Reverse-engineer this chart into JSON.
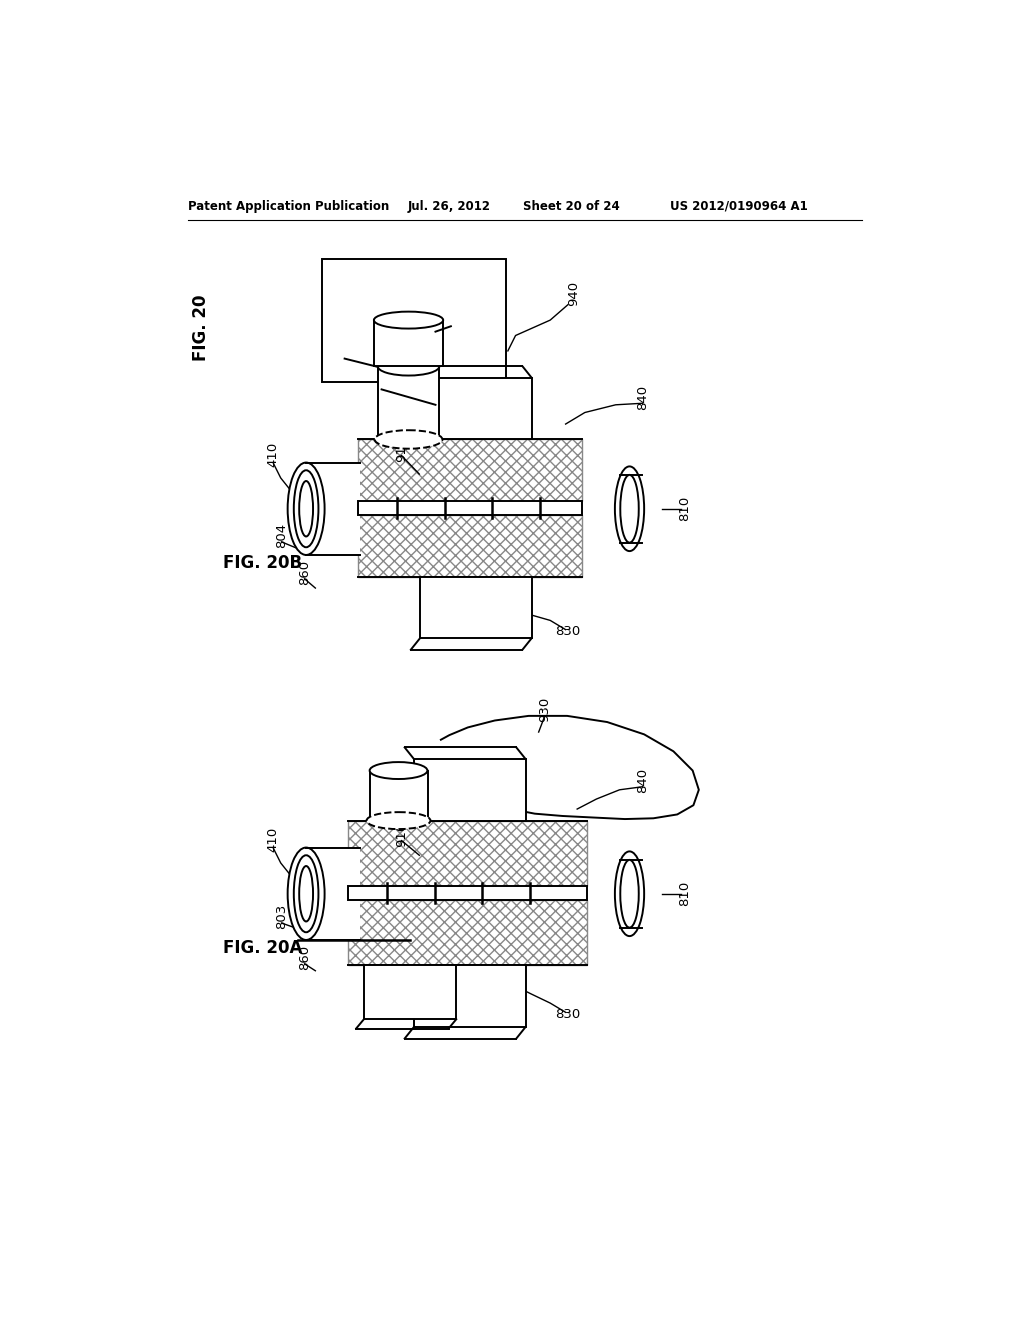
{
  "background_color": "#ffffff",
  "header_text": "Patent Application Publication",
  "header_date": "Jul. 26, 2012",
  "header_sheet": "Sheet 20 of 24",
  "header_patent": "US 2012/0190964 A1",
  "fig_label_20": "FIG. 20",
  "fig_label_20A": "FIG. 20A",
  "fig_label_20B": "FIG. 20B",
  "line_color": "#000000",
  "text_color": "#000000"
}
